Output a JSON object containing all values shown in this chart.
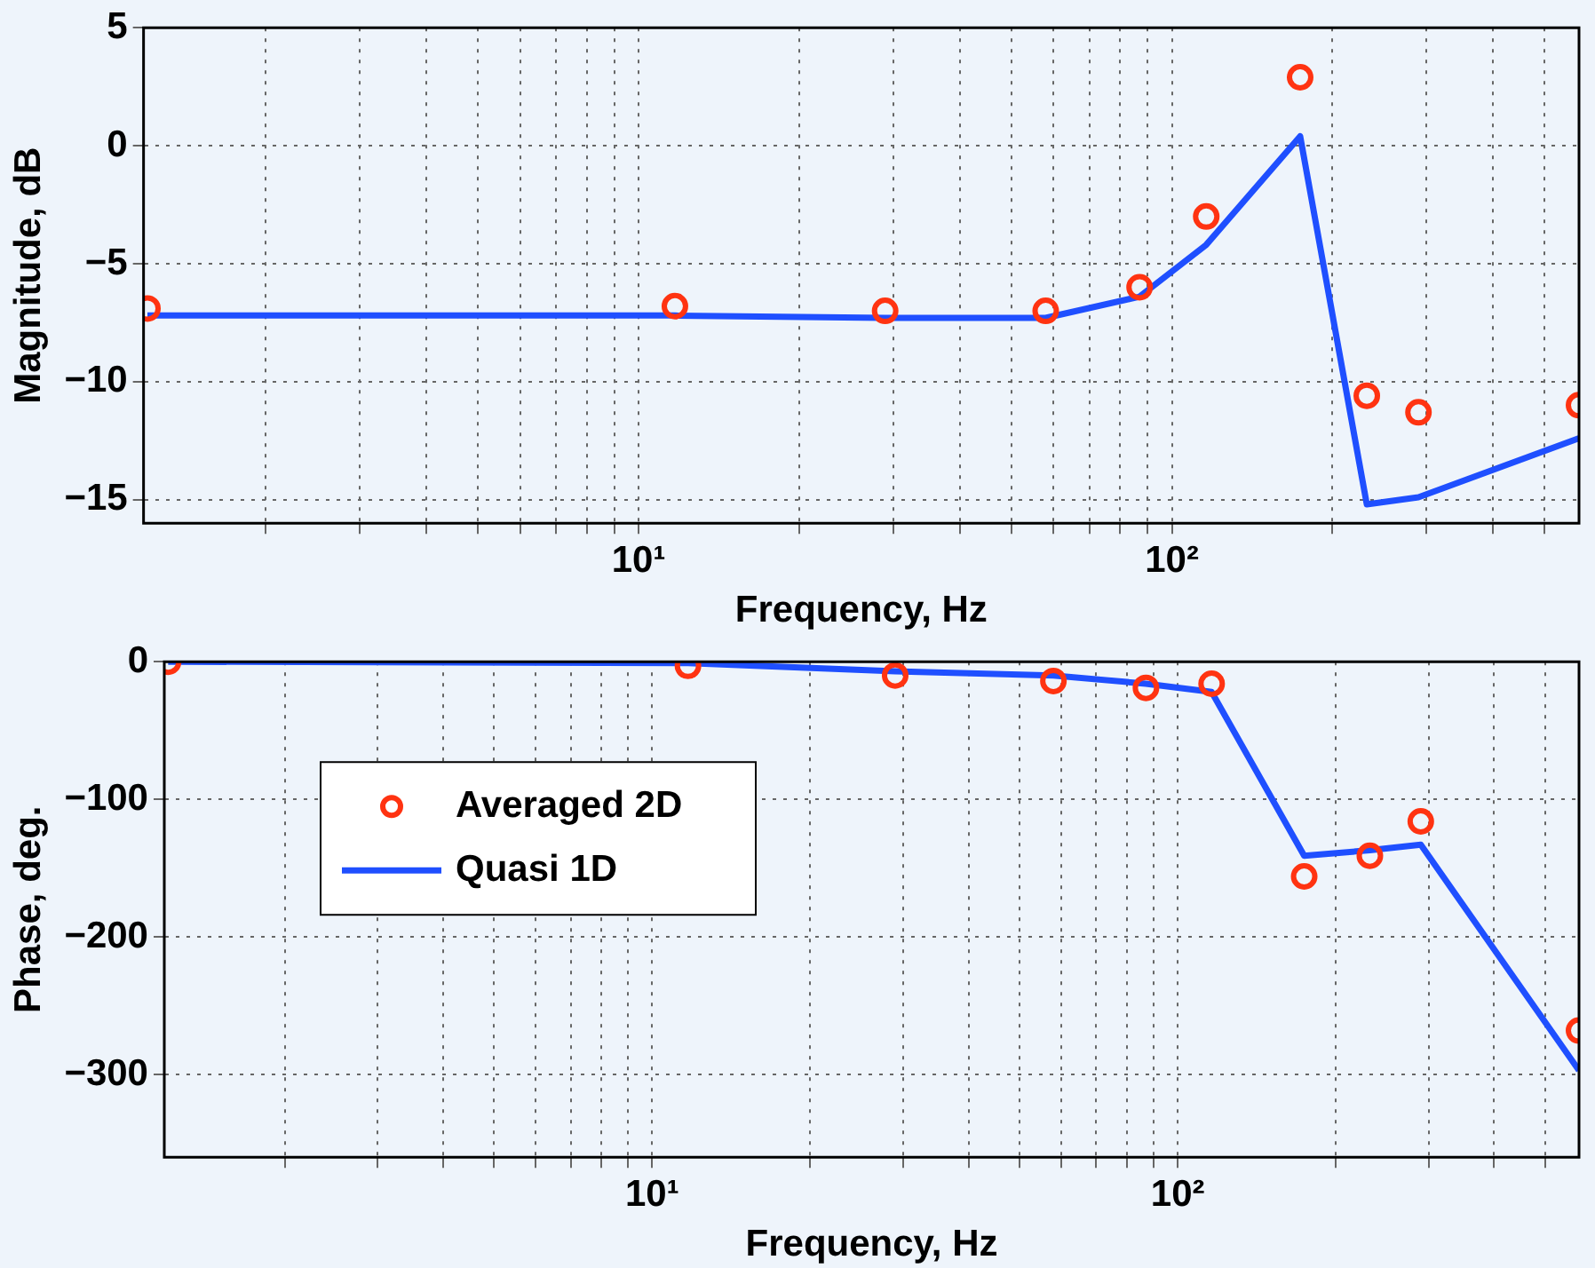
{
  "chart_data": [
    {
      "type": "line",
      "xlabel": "Frequency, Hz",
      "ylabel": "Magnitude, dB",
      "log": "x",
      "grid": true,
      "legend": false,
      "line_style": "solid",
      "xlim": [
        1.18,
        580
      ],
      "xticks": [
        {
          "value": 2,
          "label": null
        },
        {
          "value": 3,
          "label": null
        },
        {
          "value": 4,
          "label": null
        },
        {
          "value": 5,
          "label": null
        },
        {
          "value": 6,
          "label": null
        },
        {
          "value": 7,
          "label": null
        },
        {
          "value": 8,
          "label": null
        },
        {
          "value": 9,
          "label": null
        },
        {
          "value": 10,
          "label": "10¹"
        },
        {
          "value": 20,
          "label": null
        },
        {
          "value": 30,
          "label": null
        },
        {
          "value": 40,
          "label": null
        },
        {
          "value": 50,
          "label": null
        },
        {
          "value": 60,
          "label": null
        },
        {
          "value": 70,
          "label": null
        },
        {
          "value": 80,
          "label": null
        },
        {
          "value": 90,
          "label": null
        },
        {
          "value": 100,
          "label": "10²"
        },
        {
          "value": 200,
          "label": null
        },
        {
          "value": 300,
          "label": null
        },
        {
          "value": 400,
          "label": null
        },
        {
          "value": 500,
          "label": null
        }
      ],
      "ylim": [
        -16,
        5
      ],
      "yticks": [
        -15,
        -10,
        -5,
        0,
        5
      ],
      "x": [
        1.2,
        11.7,
        29,
        58,
        87,
        116,
        174,
        232,
        290,
        580
      ],
      "series": [
        {
          "type": "scatter",
          "marker": "circle",
          "color": "#ff3311",
          "values": [
            -6.9,
            -6.8,
            -7.0,
            -7.0,
            -6.0,
            -3.0,
            2.9,
            -10.6,
            -11.3,
            -11.0
          ]
        },
        {
          "type": "line",
          "marker": "none",
          "color": "#1f4fff",
          "values": [
            -7.2,
            -7.2,
            -7.3,
            -7.3,
            -6.4,
            -4.2,
            0.4,
            -15.2,
            -14.9,
            -12.4
          ]
        }
      ]
    },
    {
      "type": "line",
      "xlabel": "Frequency, Hz",
      "ylabel": "Phase, deg.",
      "log": "x",
      "grid": true,
      "legend": "left",
      "line_style": "solid",
      "xlim": [
        1.18,
        580
      ],
      "xticks": [
        {
          "value": 2,
          "label": null
        },
        {
          "value": 3,
          "label": null
        },
        {
          "value": 4,
          "label": null
        },
        {
          "value": 5,
          "label": null
        },
        {
          "value": 6,
          "label": null
        },
        {
          "value": 7,
          "label": null
        },
        {
          "value": 8,
          "label": null
        },
        {
          "value": 9,
          "label": null
        },
        {
          "value": 10,
          "label": "10¹"
        },
        {
          "value": 20,
          "label": null
        },
        {
          "value": 30,
          "label": null
        },
        {
          "value": 40,
          "label": null
        },
        {
          "value": 50,
          "label": null
        },
        {
          "value": 60,
          "label": null
        },
        {
          "value": 70,
          "label": null
        },
        {
          "value": 80,
          "label": null
        },
        {
          "value": 90,
          "label": null
        },
        {
          "value": 100,
          "label": "10²"
        },
        {
          "value": 200,
          "label": null
        },
        {
          "value": 300,
          "label": null
        },
        {
          "value": 400,
          "label": null
        },
        {
          "value": 500,
          "label": null
        }
      ],
      "ylim": [
        -360,
        0
      ],
      "yticks": [
        -300,
        -200,
        -100,
        0
      ],
      "x": [
        1.2,
        11.7,
        29,
        58,
        87,
        116,
        174,
        232,
        290,
        580
      ],
      "series": [
        {
          "type": "scatter",
          "marker": "circle",
          "name": "Averaged 2D",
          "color": "#ff3311",
          "values": [
            0,
            -3,
            -10,
            -14,
            -19,
            -16,
            -156,
            -141,
            -116,
            -268
          ]
        },
        {
          "type": "line",
          "marker": "none",
          "name": "Quasi 1D",
          "color": "#1f4fff",
          "values": [
            0,
            -1,
            -7,
            -10,
            -16,
            -22,
            -141,
            -137,
            -133,
            -297
          ]
        }
      ]
    }
  ]
}
